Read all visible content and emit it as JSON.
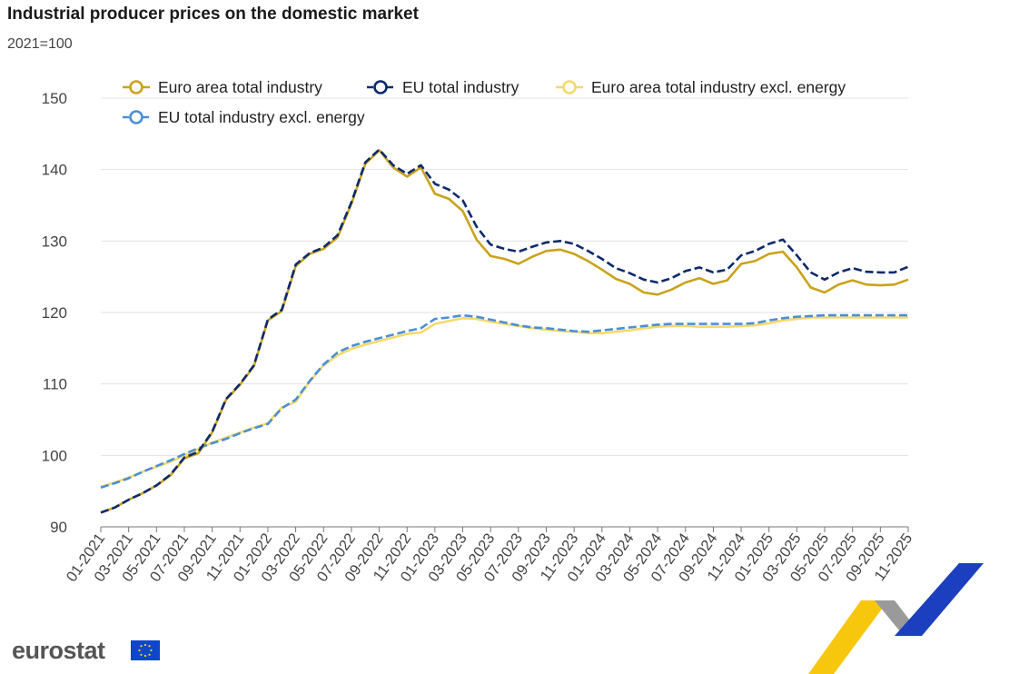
{
  "chart_data": {
    "type": "line",
    "title": "Industrial producer prices on the domestic market",
    "subtitle": "2021=100",
    "xlabel": "",
    "ylabel": "",
    "ylim": [
      90,
      150
    ],
    "yticks": [
      90,
      100,
      110,
      120,
      130,
      140,
      150
    ],
    "grid": true,
    "legend_position": "top",
    "categories": [
      "01-2021",
      "02-2021",
      "03-2021",
      "04-2021",
      "05-2021",
      "06-2021",
      "07-2021",
      "08-2021",
      "09-2021",
      "10-2021",
      "11-2021",
      "12-2021",
      "01-2022",
      "02-2022",
      "03-2022",
      "04-2022",
      "05-2022",
      "06-2022",
      "07-2022",
      "08-2022",
      "09-2022",
      "10-2022",
      "11-2022",
      "12-2022",
      "01-2023",
      "02-2023",
      "03-2023",
      "04-2023",
      "05-2023",
      "06-2023",
      "07-2023",
      "08-2023",
      "09-2023",
      "10-2023",
      "11-2023",
      "12-2023",
      "01-2024",
      "02-2024",
      "03-2024",
      "04-2024",
      "05-2024",
      "06-2024",
      "07-2024",
      "08-2024",
      "09-2024",
      "10-2024",
      "11-2024",
      "12-2024",
      "01-2025",
      "02-2025",
      "03-2025",
      "04-2025",
      "05-2025",
      "06-2025",
      "07-2025",
      "08-2025",
      "09-2025",
      "10-2025",
      "11-2025"
    ],
    "tick_labels": [
      "01-2021",
      "03-2021",
      "05-2021",
      "07-2021",
      "09-2021",
      "11-2021",
      "01-2022",
      "03-2022",
      "05-2022",
      "07-2022",
      "09-2022",
      "11-2022",
      "01-2023",
      "03-2023",
      "05-2023",
      "07-2023",
      "09-2023",
      "11-2023",
      "01-2024",
      "03-2024",
      "05-2024",
      "07-2024",
      "09-2024",
      "11-2024",
      "01-2025",
      "03-2025",
      "05-2025",
      "07-2025",
      "09-2025",
      "11-2025"
    ],
    "series": [
      {
        "name": "Euro area total industry",
        "color": "#c9a31a",
        "dashed": false,
        "values": [
          92.0,
          92.7,
          93.8,
          94.7,
          95.8,
          97.2,
          99.6,
          100.3,
          103.2,
          107.8,
          109.9,
          112.5,
          118.9,
          120.2,
          126.5,
          128.2,
          128.9,
          130.5,
          135.2,
          140.8,
          142.7,
          140.3,
          139.0,
          140.3,
          136.6,
          135.9,
          134.2,
          130.2,
          127.9,
          127.5,
          126.8,
          127.8,
          128.6,
          128.8,
          128.2,
          127.2,
          126.0,
          124.7,
          124.0,
          122.8,
          122.5,
          123.2,
          124.2,
          124.8,
          124.0,
          124.5,
          126.8,
          127.2,
          128.2,
          128.5,
          126.3,
          123.5,
          122.8,
          123.9,
          124.5,
          123.9,
          123.8,
          123.9,
          124.6
        ]
      },
      {
        "name": "EU total industry",
        "color": "#0b2a6b",
        "dashed": true,
        "values": [
          92.0,
          92.7,
          93.8,
          94.7,
          95.8,
          97.3,
          99.7,
          100.5,
          103.3,
          107.9,
          110.0,
          112.6,
          119.0,
          120.4,
          126.7,
          128.3,
          129.1,
          130.8,
          135.4,
          141.0,
          142.8,
          140.6,
          139.4,
          140.6,
          138.0,
          137.2,
          135.7,
          132.0,
          129.5,
          128.9,
          128.5,
          129.2,
          129.8,
          130.0,
          129.6,
          128.6,
          127.5,
          126.2,
          125.5,
          124.6,
          124.2,
          124.8,
          125.8,
          126.3,
          125.6,
          126.0,
          128.0,
          128.6,
          129.6,
          130.2,
          128.0,
          125.6,
          124.6,
          125.6,
          126.2,
          125.7,
          125.6,
          125.6,
          126.4
        ]
      },
      {
        "name": "Euro area total industry excl. energy",
        "color": "#f5d96b",
        "dashed": false,
        "values": [
          95.6,
          96.2,
          96.9,
          97.7,
          98.4,
          99.1,
          100.0,
          100.9,
          101.8,
          102.5,
          103.2,
          103.9,
          104.5,
          106.7,
          107.5,
          110.3,
          112.6,
          114.0,
          114.9,
          115.5,
          116.0,
          116.5,
          117.0,
          117.2,
          118.4,
          118.8,
          119.2,
          119.1,
          118.7,
          118.4,
          118.1,
          117.8,
          117.6,
          117.4,
          117.3,
          117.1,
          117.1,
          117.3,
          117.5,
          117.8,
          118.0,
          118.1,
          118.1,
          118.0,
          118.0,
          118.0,
          118.1,
          118.2,
          118.5,
          118.9,
          119.1,
          119.3,
          119.3,
          119.3,
          119.3,
          119.3,
          119.3,
          119.3,
          119.3
        ]
      },
      {
        "name": "EU total industry excl. energy",
        "color": "#4a8fd6",
        "dashed": true,
        "values": [
          95.5,
          96.1,
          96.8,
          97.7,
          98.5,
          99.3,
          100.2,
          101.0,
          101.7,
          102.3,
          103.1,
          103.8,
          104.4,
          106.6,
          107.8,
          110.4,
          112.7,
          114.4,
          115.3,
          115.9,
          116.4,
          116.9,
          117.4,
          117.8,
          119.1,
          119.3,
          119.6,
          119.4,
          119.0,
          118.6,
          118.2,
          117.9,
          117.8,
          117.6,
          117.4,
          117.3,
          117.5,
          117.7,
          117.9,
          118.1,
          118.3,
          118.4,
          118.4,
          118.4,
          118.4,
          118.4,
          118.4,
          118.5,
          118.9,
          119.2,
          119.4,
          119.5,
          119.6,
          119.6,
          119.6,
          119.6,
          119.6,
          119.6,
          119.6
        ]
      }
    ]
  },
  "branding": {
    "logo_text": "eurostat"
  }
}
